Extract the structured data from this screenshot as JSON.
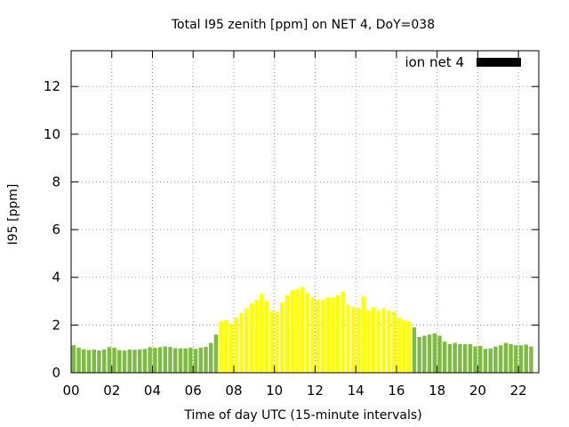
{
  "chart_data": {
    "type": "bar",
    "title": "Total I95 zenith [ppm] on NET 4, DoY=038",
    "xlabel": "Time of day UTC (15-minute intervals)",
    "ylabel": "I95 [ppm]",
    "xlim": [
      0,
      23
    ],
    "ylim": [
      0,
      13.5
    ],
    "x_ticks": [
      0,
      2,
      4,
      6,
      8,
      10,
      12,
      14,
      16,
      18,
      20,
      22
    ],
    "x_tick_labels": [
      "00",
      "02",
      "04",
      "06",
      "08",
      "10",
      "12",
      "14",
      "16",
      "18",
      "20",
      "22"
    ],
    "y_ticks": [
      0,
      2,
      4,
      6,
      8,
      10,
      12
    ],
    "y_tick_labels": [
      "0",
      "2",
      "4",
      "6",
      "8",
      "10",
      "12"
    ],
    "grid": true,
    "legend": {
      "label": "ion net 4",
      "position": "top-right",
      "color": "#000000"
    },
    "colors": {
      "low": "#7dbb42",
      "high": "#ffff00"
    },
    "bin_hours": 0.25,
    "start_hour": 0,
    "values": [
      1.15,
      1.05,
      0.98,
      0.95,
      0.97,
      0.93,
      0.98,
      1.07,
      1.05,
      0.95,
      0.93,
      0.97,
      0.96,
      0.98,
      1.0,
      1.07,
      1.05,
      1.07,
      1.1,
      1.08,
      1.03,
      1.02,
      1.02,
      1.05,
      1.0,
      1.05,
      1.08,
      1.25,
      1.6,
      2.15,
      2.2,
      2.05,
      2.3,
      2.5,
      2.7,
      2.9,
      3.05,
      3.3,
      3.0,
      2.6,
      2.55,
      2.95,
      3.25,
      3.45,
      3.5,
      3.6,
      3.35,
      3.15,
      3.05,
      3.05,
      3.15,
      3.15,
      3.25,
      3.4,
      2.85,
      2.75,
      2.7,
      3.2,
      2.6,
      2.75,
      2.6,
      2.7,
      2.6,
      2.55,
      2.3,
      2.2,
      2.15,
      1.9,
      1.5,
      1.55,
      1.6,
      1.65,
      1.55,
      1.3,
      1.2,
      1.25,
      1.2,
      1.2,
      1.2,
      1.1,
      1.12,
      1.0,
      1.02,
      1.1,
      1.15,
      1.25,
      1.2,
      1.15,
      1.15,
      1.18,
      1.1
    ],
    "high_flags": [
      false,
      false,
      false,
      false,
      false,
      false,
      false,
      false,
      false,
      false,
      false,
      false,
      false,
      false,
      false,
      false,
      false,
      false,
      false,
      false,
      false,
      false,
      false,
      false,
      false,
      false,
      false,
      false,
      false,
      true,
      true,
      true,
      true,
      true,
      true,
      true,
      true,
      true,
      true,
      true,
      true,
      true,
      true,
      true,
      true,
      true,
      true,
      true,
      true,
      true,
      true,
      true,
      true,
      true,
      true,
      true,
      true,
      true,
      true,
      true,
      true,
      true,
      true,
      true,
      true,
      true,
      true,
      false,
      false,
      false,
      false,
      false,
      false,
      false,
      false,
      false,
      false,
      false,
      false,
      false,
      false,
      false,
      false,
      false,
      false,
      false,
      false,
      false,
      false,
      false,
      false
    ]
  }
}
